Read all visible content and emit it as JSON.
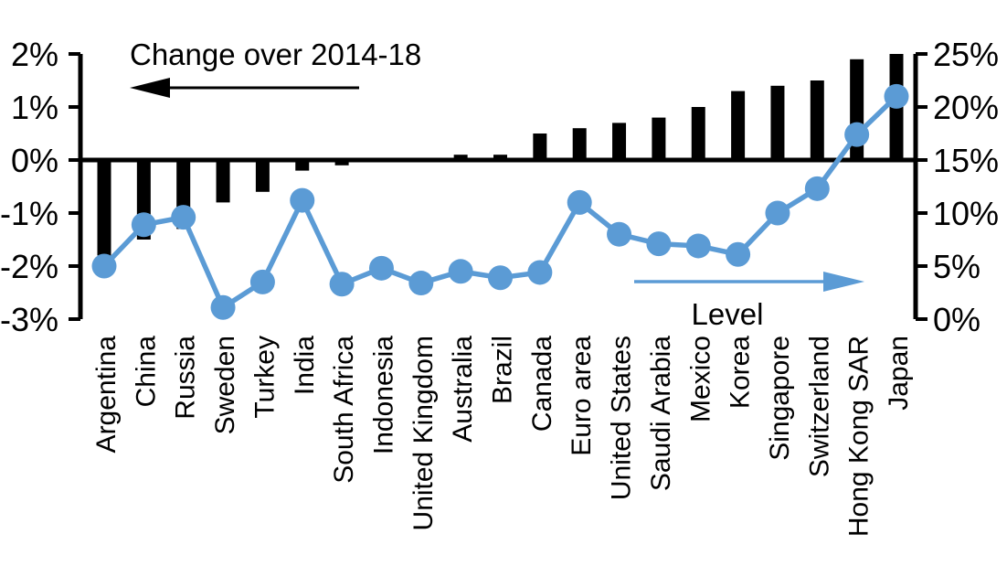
{
  "chart_data": {
    "type": "combo-bar-line",
    "title": "",
    "categories": [
      "Argentina",
      "China",
      "Russia",
      "Sweden",
      "Turkey",
      "India",
      "South Africa",
      "Indonesia",
      "United Kingdom",
      "Australia",
      "Brazil",
      "Canada",
      "Euro area",
      "United States",
      "Saudi Arabia",
      "Mexico",
      "Korea",
      "Singapore",
      "Switzerland",
      "Hong Kong SAR",
      "Japan"
    ],
    "series": [
      {
        "name": "Change over 2014-18",
        "type": "bar",
        "axis": "left",
        "color": "#000000",
        "values": [
          -1.8,
          -1.5,
          -1.3,
          -0.8,
          -0.6,
          -0.2,
          -0.1,
          0,
          0,
          0.1,
          0.1,
          0.5,
          0.6,
          0.7,
          0.8,
          1.0,
          1.3,
          1.4,
          1.5,
          1.9,
          2.0
        ]
      },
      {
        "name": "Level",
        "type": "line",
        "axis": "right",
        "color": "#5b9bd5",
        "values": [
          5.0,
          8.9,
          9.6,
          1.1,
          3.5,
          11.2,
          3.3,
          4.8,
          3.4,
          4.5,
          3.9,
          4.4,
          11.0,
          8.0,
          7.1,
          6.9,
          6.1,
          10.0,
          12.3,
          17.4,
          21.0
        ]
      }
    ],
    "left_axis": {
      "side": "left",
      "min": -3,
      "max": 2,
      "tick_values": [
        2,
        1,
        0,
        -1,
        -2,
        -3
      ],
      "tick_labels": [
        "2%",
        "1%",
        "0%",
        "-1%",
        "-2%",
        "-3%"
      ]
    },
    "right_axis": {
      "side": "right",
      "min": 0,
      "max": 25,
      "tick_values": [
        25,
        20,
        15,
        10,
        5,
        0
      ],
      "tick_labels": [
        "25%",
        "20%",
        "15%",
        "10%",
        "5%",
        "0%"
      ]
    },
    "annotations": {
      "bar_label": "Change over 2014-18",
      "bar_arrow_direction": "left",
      "line_label": "Level",
      "line_arrow_direction": "right"
    },
    "grid": "off",
    "legend_position": "in-plot annotations",
    "baseline": "left axis 0% aligns with right axis 15%"
  },
  "colors": {
    "bar": "#000000",
    "line": "#5b9bd5",
    "background": "#ffffff",
    "text": "#000000"
  }
}
